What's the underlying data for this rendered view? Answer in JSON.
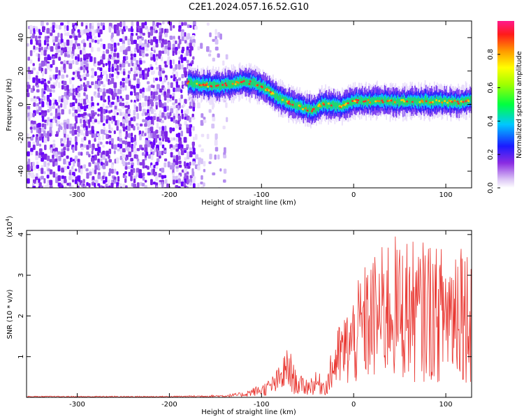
{
  "title": "C2E1.2024.057.16.52.G10",
  "chart_data": [
    {
      "type": "heatmap",
      "xlabel": "Height of straight line (km)",
      "ylabel": "Frequency (Hz)",
      "xlim": [
        -355,
        128
      ],
      "ylim": [
        -50,
        50
      ],
      "xticks": [
        -300,
        -200,
        -100,
        0,
        100
      ],
      "yticks": [
        -40,
        -20,
        0,
        20,
        40
      ],
      "colorbar": {
        "label": "Normalized spectral amplitude",
        "range": [
          0,
          1
        ],
        "ticks": [
          0.0,
          0.2,
          0.4,
          0.6,
          0.8
        ]
      },
      "noise_region_x": [
        -355,
        -137
      ],
      "signal_ridge": {
        "x": [
          -180,
          -165,
          -150,
          -135,
          -120,
          -105,
          -95,
          -85,
          -75,
          -65,
          -55,
          -45,
          -35,
          -25,
          -15,
          -5,
          5,
          20,
          40,
          60,
          80,
          100,
          115,
          128
        ],
        "freq": [
          13,
          12,
          11,
          12,
          14,
          12,
          9,
          5,
          2,
          0,
          -2,
          -4,
          0,
          0,
          -1,
          1,
          2,
          2,
          2,
          2,
          2,
          2,
          1,
          3
        ]
      }
    },
    {
      "type": "line",
      "xlabel": "Height of straight line (km)",
      "ylabel": "SNR (10 * v/v)",
      "y_multiplier": "(x10",
      "y_multiplier_exp": "4",
      "multiplier_close": ")",
      "xlim": [
        -355,
        128
      ],
      "ylim": [
        0,
        4.1
      ],
      "xticks": [
        -300,
        -200,
        -100,
        0,
        100
      ],
      "yticks": [
        1,
        2,
        3,
        4
      ],
      "color": "#e8302a",
      "x": [
        -355,
        -300,
        -250,
        -200,
        -170,
        -140,
        -120,
        -110,
        -100,
        -90,
        -80,
        -75,
        -70,
        -65,
        -60,
        -50,
        -40,
        -30,
        -20,
        -10,
        0,
        10,
        20,
        30,
        40,
        50,
        60,
        70,
        80,
        90,
        100,
        110,
        115,
        120,
        128
      ],
      "y": [
        0.02,
        0.02,
        0.02,
        0.02,
        0.03,
        0.04,
        0.08,
        0.15,
        0.2,
        0.3,
        0.5,
        0.7,
        0.8,
        0.5,
        0.35,
        0.3,
        0.4,
        0.3,
        1.0,
        1.3,
        1.6,
        2.0,
        2.2,
        2.3,
        2.6,
        2.4,
        2.5,
        2.3,
        2.5,
        2.3,
        2.4,
        2.5,
        3.0,
        2.4,
        2.3
      ]
    }
  ]
}
